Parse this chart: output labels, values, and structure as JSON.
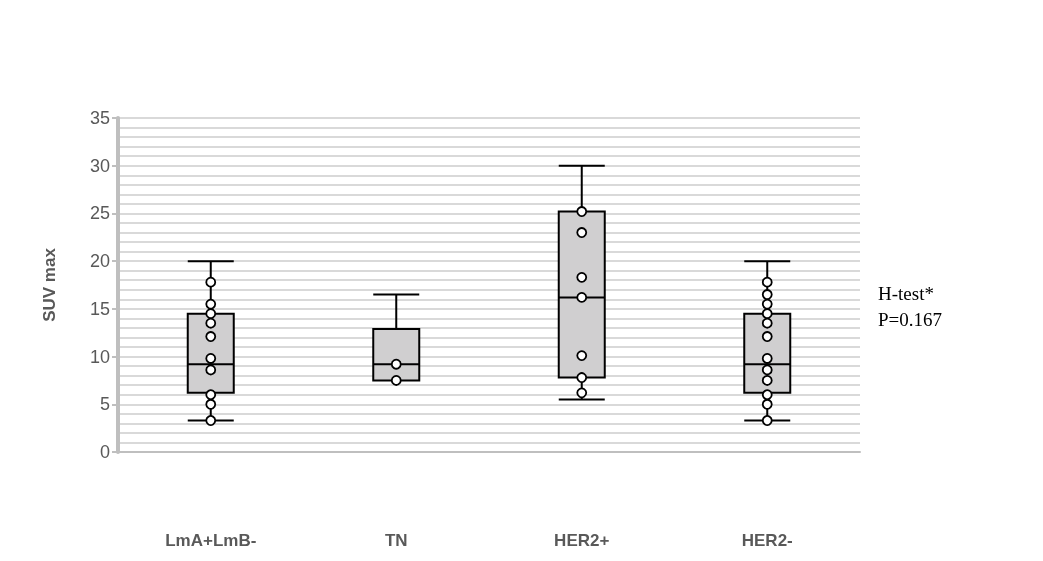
{
  "chart_data": {
    "type": "box",
    "ylabel": "SUV max",
    "categories": [
      "LmA+LmB-",
      "TN",
      "HER2+",
      "HER2-"
    ],
    "ylim": [
      0,
      35
    ],
    "yticks": [
      0,
      5,
      10,
      15,
      20,
      25,
      30,
      35
    ],
    "grid": "y",
    "marker": "circle",
    "series": [
      {
        "color": "#d0cfd0",
        "boxes": [
          {
            "low": 3.3,
            "q1": 6.2,
            "median": 9.2,
            "q3": 14.5,
            "high": 20
          },
          {
            "low": 7.5,
            "q1": 7.5,
            "median": 9.2,
            "q3": 12.9,
            "high": 16.5
          },
          {
            "low": 5.5,
            "q1": 7.8,
            "median": 16.2,
            "q3": 25.2,
            "high": 30
          },
          {
            "low": 3.3,
            "q1": 6.2,
            "median": 9.2,
            "q3": 14.5,
            "high": 20
          }
        ]
      },
      {
        "type": "scatter",
        "color": "#ffffff",
        "x": [
          "LmA+LmB-",
          "LmA+LmB-",
          "LmA+LmB-",
          "LmA+LmB-",
          "LmA+LmB-",
          "LmA+LmB-",
          "LmA+LmB-",
          "LmA+LmB-",
          "LmA+LmB-",
          "LmA+LmB-",
          "TN",
          "TN",
          "HER2+",
          "HER2+",
          "HER2+",
          "HER2+",
          "HER2+",
          "HER2+",
          "HER2+",
          "HER2-",
          "HER2-",
          "HER2-",
          "HER2-",
          "HER2-",
          "HER2-",
          "HER2-",
          "HER2-",
          "HER2-",
          "HER2-",
          "HER2-",
          "HER2-"
        ],
        "values": [
          17.8,
          15.5,
          14.5,
          13.5,
          12.1,
          9.8,
          8.6,
          6.0,
          5.0,
          3.3,
          9.2,
          7.5,
          25.2,
          23,
          18.3,
          16.2,
          10.1,
          7.8,
          6.2,
          17.8,
          16.5,
          15.5,
          14.5,
          13.5,
          12.1,
          9.8,
          8.6,
          7.5,
          6.0,
          5.0,
          3.3
        ]
      }
    ],
    "annotations": [
      "H-test*",
      "P=0.167"
    ]
  }
}
